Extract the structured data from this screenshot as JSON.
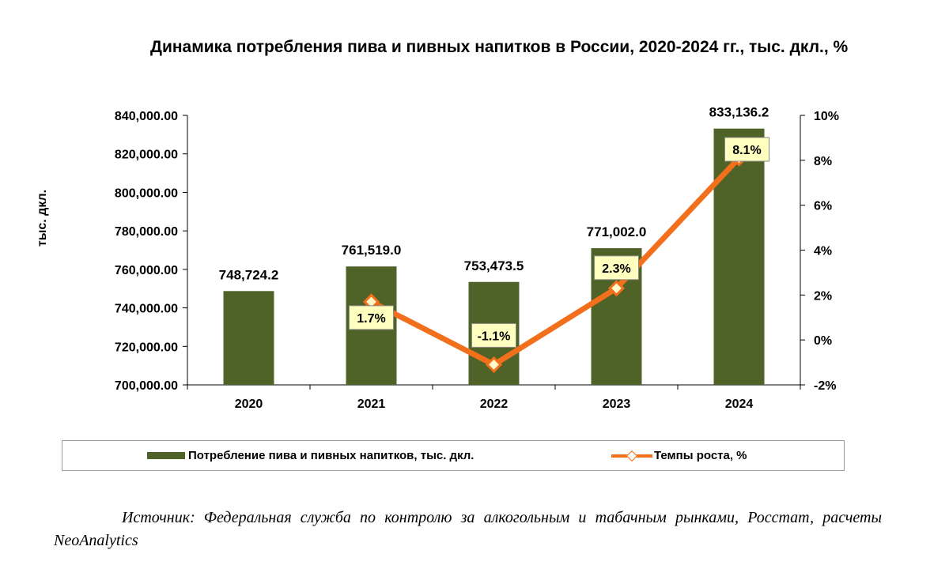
{
  "chart_data": {
    "type": "bar+line",
    "title": "Динамика потребления пива и пивных напитков в России, 2020-2024 гг., тыс. дкл., %",
    "categories": [
      "2020",
      "2021",
      "2022",
      "2023",
      "2024"
    ],
    "series": [
      {
        "name": "Потребление пива и пивных напитков, тыс. дкл.",
        "type": "bar",
        "axis": "left",
        "values": [
          748724.2,
          761519.0,
          753473.5,
          771002.0,
          833136.2
        ],
        "value_labels": [
          "748,724.2",
          "761,519.0",
          "753,473.5",
          "771,002.0",
          "833,136.2"
        ],
        "color": "#4f6228"
      },
      {
        "name": "Темпы роста, %",
        "type": "line",
        "axis": "right",
        "values": [
          null,
          1.7,
          -1.1,
          2.3,
          8.1
        ],
        "value_labels": [
          "",
          "1.7%",
          "-1.1%",
          "2.3%",
          "8.1%"
        ],
        "color": "#f26f1c",
        "marker": "diamond"
      }
    ],
    "y_left": {
      "label": "тыс. дкл.",
      "range": [
        700000,
        840000
      ],
      "ticks": [
        "700,000.00",
        "720,000.00",
        "740,000.00",
        "760,000.00",
        "780,000.00",
        "800,000.00",
        "820,000.00",
        "840,000.00"
      ]
    },
    "y_right": {
      "range": [
        -2,
        10
      ],
      "ticks": [
        "-2%",
        "0%",
        "2%",
        "4%",
        "6%",
        "8%",
        "10%"
      ]
    },
    "grid": false,
    "legend": "bottom"
  },
  "source": "Источник: Федеральная служба по контролю за алкогольным и табачным рынками, Росстат, расчеты NeoAnalytics"
}
